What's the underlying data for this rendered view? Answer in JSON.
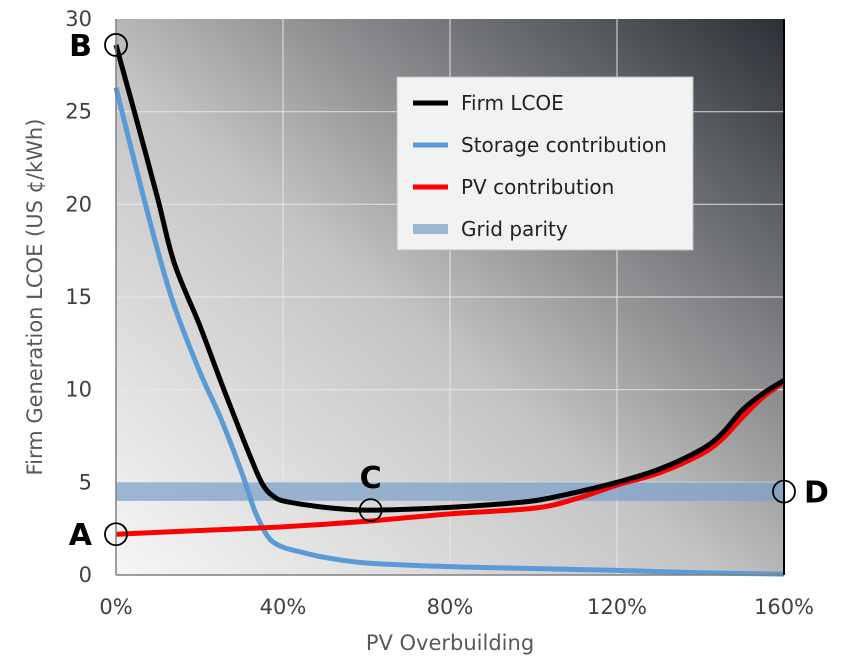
{
  "chart_data": {
    "type": "line",
    "title": "",
    "xlabel": "PV Overbuilding",
    "ylabel": "Firm Generation LCOE (US ¢/kWh)",
    "xlim": [
      0,
      160
    ],
    "ylim": [
      0,
      30
    ],
    "x_ticks": [
      "0%",
      "40%",
      "80%",
      "120%",
      "160%"
    ],
    "x_tick_values": [
      0,
      40,
      80,
      120,
      160
    ],
    "y_ticks": [
      "0",
      "5",
      "10",
      "15",
      "20",
      "25",
      "30"
    ],
    "y_tick_values": [
      0,
      5,
      10,
      15,
      20,
      25,
      30
    ],
    "grid": true,
    "legend_position": "top-right",
    "series": [
      {
        "name": "Firm LCOE",
        "color": "#000000",
        "x": [
          0,
          5,
          10,
          14,
          20,
          25,
          30,
          34,
          36,
          38,
          40,
          45,
          50,
          55,
          60,
          70,
          80,
          90,
          100,
          110,
          120,
          130,
          140,
          145,
          150,
          155,
          160
        ],
        "y": [
          28.6,
          24.5,
          20.3,
          16.8,
          13.5,
          10.5,
          7.6,
          5.4,
          4.6,
          4.2,
          4.0,
          3.8,
          3.65,
          3.55,
          3.5,
          3.55,
          3.65,
          3.8,
          4.0,
          4.45,
          5.0,
          5.7,
          6.75,
          7.6,
          8.9,
          9.8,
          10.5
        ]
      },
      {
        "name": "Storage contribution",
        "color": "#5b9bd5",
        "x": [
          0,
          5,
          10,
          14,
          20,
          25,
          30,
          33,
          35,
          37,
          40,
          45,
          50,
          60,
          80,
          100,
          120,
          140,
          160
        ],
        "y": [
          26.3,
          21.8,
          17.5,
          14.5,
          11.0,
          8.5,
          5.6,
          3.6,
          2.6,
          1.9,
          1.5,
          1.2,
          0.95,
          0.65,
          0.45,
          0.35,
          0.25,
          0.12,
          0.05
        ]
      },
      {
        "name": "PV contribution",
        "color": "#ff0000",
        "x": [
          0,
          20,
          40,
          60,
          80,
          100,
          110,
          120,
          130,
          140,
          145,
          150,
          155,
          160
        ],
        "y": [
          2.2,
          2.4,
          2.6,
          2.9,
          3.3,
          3.6,
          4.1,
          4.85,
          5.5,
          6.5,
          7.3,
          8.5,
          9.6,
          10.4
        ]
      },
      {
        "name": "Grid parity",
        "color": "#7fa3c8",
        "band": [
          4.0,
          5.0
        ]
      }
    ],
    "annotations": [
      {
        "label": "A",
        "x": 0,
        "y": 2.2
      },
      {
        "label": "B",
        "x": 0,
        "y": 28.6
      },
      {
        "label": "C",
        "x": 61,
        "y": 3.5
      },
      {
        "label": "D",
        "x": 160,
        "y": 4.5
      }
    ]
  }
}
